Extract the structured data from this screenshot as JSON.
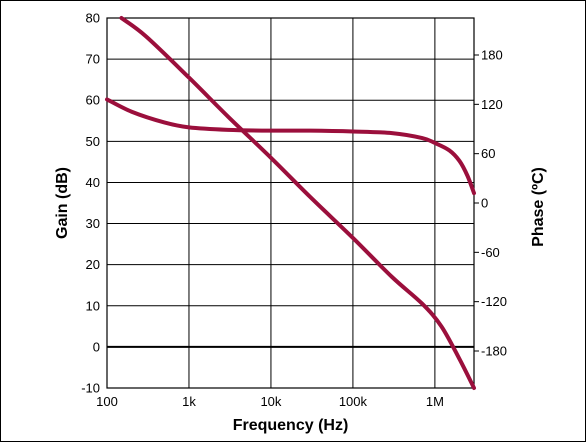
{
  "chart_data": {
    "type": "line",
    "title": "",
    "xlabel": "Frequency (Hz)",
    "ylabel": "Gain (dB)",
    "y2label": "Phase (ºC)",
    "xscale": "log",
    "xlim": [
      100,
      3000000
    ],
    "ylim": [
      -10,
      80
    ],
    "y2lim": [
      -225,
      225
    ],
    "x_ticks": [
      {
        "value": 100,
        "label": "100"
      },
      {
        "value": 1000,
        "label": "1k"
      },
      {
        "value": 10000,
        "label": "10k"
      },
      {
        "value": 100000,
        "label": "100k"
      },
      {
        "value": 1000000,
        "label": "1M"
      }
    ],
    "y_ticks": [
      {
        "value": 80,
        "label": "80"
      },
      {
        "value": 70,
        "label": "70"
      },
      {
        "value": 60,
        "label": "60"
      },
      {
        "value": 50,
        "label": "50"
      },
      {
        "value": 40,
        "label": "40"
      },
      {
        "value": 30,
        "label": "30"
      },
      {
        "value": 20,
        "label": "20"
      },
      {
        "value": 10,
        "label": "10"
      },
      {
        "value": 0,
        "label": "0"
      },
      {
        "value": -10,
        "label": "-10"
      }
    ],
    "y2_ticks": [
      {
        "value": 180,
        "label": "180"
      },
      {
        "value": 120,
        "label": "120"
      },
      {
        "value": 60,
        "label": "60"
      },
      {
        "value": 0,
        "label": "0"
      },
      {
        "value": -60,
        "label": "-60"
      },
      {
        "value": -120,
        "label": "-120"
      },
      {
        "value": -180,
        "label": "-180"
      }
    ],
    "grid": true,
    "series": [
      {
        "axis": "left",
        "color": "#9b0f3c",
        "x": [
          150,
          300,
          1000,
          3000,
          10000,
          30000,
          100000,
          300000,
          700000,
          1200000,
          2000000,
          3000000
        ],
        "y": [
          80,
          75.5,
          65.5,
          56,
          46,
          36.5,
          26.5,
          17,
          10.5,
          5,
          -3,
          -10
        ]
      },
      {
        "axis": "right",
        "color": "#9b0f3c",
        "x": [
          100,
          200,
          500,
          1000,
          3000,
          10000,
          30000,
          100000,
          300000,
          700000,
          1000000,
          1500000,
          2000000,
          2500000,
          3000000
        ],
        "y": [
          126,
          111,
          98,
          92,
          89,
          88,
          88,
          87,
          85,
          79,
          73,
          64,
          51,
          33,
          12
        ]
      }
    ]
  }
}
